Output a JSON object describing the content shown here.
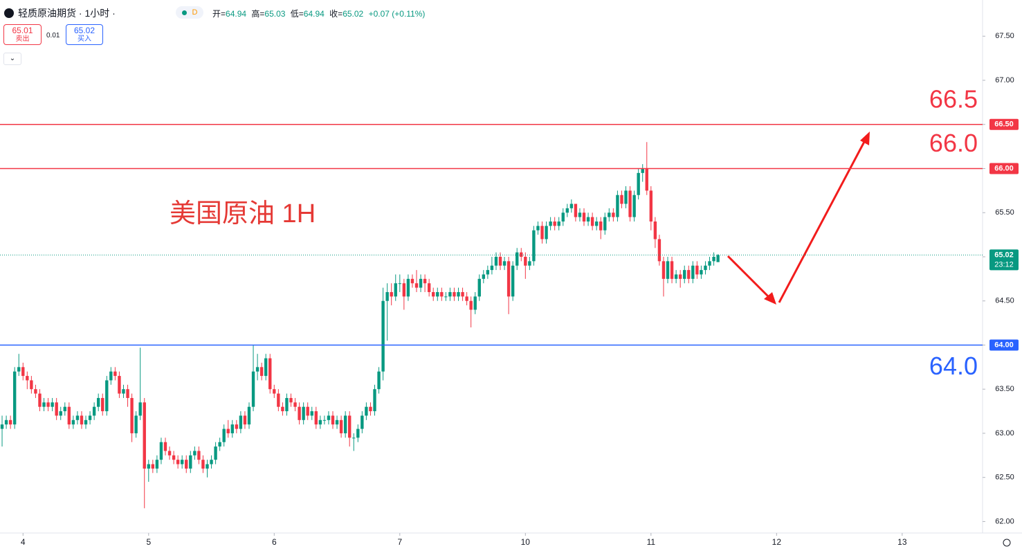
{
  "header": {
    "title": "轻质原油期货 · 1小时 ·",
    "badge": "D",
    "ohlc": [
      {
        "label": "开=",
        "value": "64.94"
      },
      {
        "label": "高=",
        "value": "65.03"
      },
      {
        "label": "低=",
        "value": "64.94"
      },
      {
        "label": "收=",
        "value": "65.02"
      }
    ],
    "change": "+0.07 (+0.11%)"
  },
  "trade": {
    "sell_price": "65.01",
    "sell_label": "卖出",
    "spread": "0.01",
    "buy_price": "65.02",
    "buy_label": "买入"
  },
  "chart_data": {
    "type": "candlestick",
    "annotation": "美国原油 1H",
    "up_color": "#089981",
    "down_color": "#f23645",
    "open": [
      63.05,
      63.1,
      63.15,
      63.1,
      63.7,
      63.75,
      63.65,
      63.6,
      63.5,
      63.45,
      63.3,
      63.35,
      63.3,
      63.35,
      63.2,
      63.25,
      63.3,
      63.1,
      63.15,
      63.2,
      63.1,
      63.15,
      63.2,
      63.3,
      63.4,
      63.25,
      63.6,
      63.7,
      63.65,
      63.45,
      63.5,
      63.4,
      63.0,
      63.2,
      63.35,
      62.6,
      62.65,
      62.6,
      62.7,
      62.9,
      62.8,
      62.75,
      62.7,
      62.65,
      62.7,
      62.6,
      62.75,
      62.8,
      62.7,
      62.6,
      62.65,
      62.7,
      62.85,
      62.9,
      63.05,
      63.0,
      63.1,
      63.05,
      63.2,
      63.1,
      63.3,
      63.7,
      63.75,
      63.65,
      63.85,
      63.5,
      63.45,
      63.3,
      63.25,
      63.4,
      63.35,
      63.3,
      63.15,
      63.3,
      63.2,
      63.25,
      63.1,
      63.15,
      63.15,
      63.2,
      63.1,
      63.15,
      63.0,
      63.2,
      62.95,
      62.95,
      63.05,
      63.2,
      63.3,
      63.25,
      63.5,
      63.7,
      64.5,
      64.6,
      64.55,
      64.7,
      64.7,
      64.55,
      64.75,
      64.7,
      64.65,
      64.75,
      64.7,
      64.6,
      64.55,
      64.6,
      64.55,
      64.55,
      64.6,
      64.55,
      64.6,
      64.55,
      64.5,
      64.4,
      64.55,
      64.75,
      64.8,
      64.85,
      64.9,
      65.0,
      64.9,
      64.95,
      64.55,
      64.9,
      65.05,
      65.0,
      64.9,
      64.95,
      65.3,
      65.35,
      65.2,
      65.35,
      65.4,
      65.35,
      65.4,
      65.5,
      65.55,
      65.6,
      65.45,
      65.5,
      65.4,
      65.45,
      65.35,
      65.4,
      65.3,
      65.45,
      65.5,
      65.45,
      65.7,
      65.6,
      65.75,
      65.45,
      65.7,
      65.95,
      66.0,
      65.75,
      65.4,
      65.2,
      64.95,
      64.75,
      64.95,
      64.75,
      64.8,
      64.75,
      64.85,
      64.75,
      64.9,
      64.8,
      64.85,
      64.9,
      64.95,
      64.94
    ],
    "high": [
      63.2,
      63.2,
      63.2,
      63.75,
      63.9,
      63.8,
      63.7,
      63.65,
      63.55,
      63.5,
      63.4,
      63.4,
      63.4,
      63.4,
      63.3,
      63.35,
      63.35,
      63.2,
      63.25,
      63.25,
      63.2,
      63.25,
      63.35,
      63.45,
      63.45,
      63.65,
      63.75,
      63.75,
      63.7,
      63.55,
      63.55,
      63.45,
      63.25,
      63.97,
      63.4,
      62.7,
      62.7,
      62.75,
      62.95,
      62.95,
      62.85,
      62.8,
      62.75,
      62.75,
      62.75,
      62.8,
      62.85,
      62.85,
      62.75,
      62.7,
      62.75,
      62.9,
      62.95,
      63.1,
      63.15,
      63.15,
      63.15,
      63.25,
      63.25,
      63.35,
      64.0,
      63.9,
      63.8,
      63.9,
      63.9,
      63.55,
      63.5,
      63.35,
      63.45,
      63.45,
      63.4,
      63.35,
      63.35,
      63.35,
      63.3,
      63.3,
      63.2,
      63.2,
      63.25,
      63.25,
      63.2,
      63.2,
      63.25,
      63.25,
      63.0,
      63.1,
      63.25,
      63.35,
      63.35,
      63.55,
      63.75,
      64.65,
      64.7,
      64.7,
      64.8,
      64.8,
      64.75,
      64.8,
      64.8,
      64.85,
      64.8,
      64.8,
      64.75,
      64.65,
      64.65,
      64.65,
      64.6,
      64.65,
      64.65,
      64.65,
      64.65,
      64.6,
      64.55,
      64.6,
      64.8,
      64.85,
      64.9,
      65.0,
      65.05,
      65.05,
      65.0,
      65.0,
      64.95,
      65.1,
      65.1,
      65.05,
      65.0,
      65.35,
      65.4,
      65.4,
      65.4,
      65.45,
      65.45,
      65.45,
      65.55,
      65.6,
      65.65,
      65.6,
      65.55,
      65.55,
      65.5,
      65.5,
      65.45,
      65.45,
      65.5,
      65.55,
      65.55,
      65.75,
      65.75,
      65.8,
      65.8,
      65.75,
      66.0,
      66.05,
      66.3,
      65.8,
      65.45,
      65.25,
      65.0,
      65.0,
      65.0,
      64.85,
      64.85,
      64.9,
      64.9,
      64.95,
      64.95,
      64.9,
      64.95,
      65.0,
      65.05,
      65.03
    ],
    "low": [
      62.85,
      63.05,
      63.05,
      63.05,
      63.65,
      63.6,
      63.5,
      63.45,
      63.4,
      63.25,
      63.25,
      63.25,
      63.25,
      63.15,
      63.15,
      63.2,
      63.05,
      63.05,
      63.1,
      63.05,
      63.05,
      63.1,
      63.15,
      63.25,
      63.2,
      63.2,
      63.55,
      63.6,
      63.4,
      63.4,
      63.3,
      62.9,
      62.95,
      63.15,
      62.15,
      62.45,
      62.55,
      62.55,
      62.65,
      62.75,
      62.7,
      62.65,
      62.6,
      62.6,
      62.55,
      62.55,
      62.7,
      62.65,
      62.55,
      62.5,
      62.6,
      62.65,
      62.8,
      62.85,
      62.95,
      62.95,
      63.0,
      63.0,
      63.05,
      63.05,
      63.25,
      63.6,
      63.6,
      63.6,
      63.45,
      63.4,
      63.25,
      63.2,
      63.2,
      63.3,
      63.25,
      63.1,
      63.1,
      63.15,
      63.15,
      63.05,
      63.05,
      63.1,
      63.1,
      63.05,
      63.05,
      62.95,
      62.95,
      62.85,
      62.8,
      62.9,
      63.0,
      63.15,
      63.2,
      63.2,
      63.45,
      63.6,
      64.05,
      64.45,
      64.5,
      64.6,
      64.4,
      64.5,
      64.65,
      64.6,
      64.6,
      64.6,
      64.55,
      64.5,
      64.5,
      64.5,
      64.5,
      64.5,
      64.5,
      64.5,
      64.5,
      64.45,
      64.2,
      64.35,
      64.5,
      64.7,
      64.75,
      64.8,
      64.85,
      64.85,
      64.85,
      64.35,
      64.5,
      64.85,
      64.95,
      64.75,
      64.85,
      64.9,
      65.25,
      65.15,
      65.15,
      65.3,
      65.3,
      65.3,
      65.35,
      65.45,
      65.5,
      65.4,
      65.4,
      65.35,
      65.35,
      65.3,
      65.3,
      65.2,
      65.25,
      65.4,
      65.4,
      65.4,
      65.55,
      65.55,
      65.4,
      65.4,
      65.65,
      65.85,
      65.7,
      65.3,
      65.1,
      64.9,
      64.55,
      64.7,
      64.7,
      64.7,
      64.65,
      64.7,
      64.7,
      64.7,
      64.75,
      64.75,
      64.8,
      64.85,
      64.9,
      64.94
    ],
    "close": [
      63.1,
      63.15,
      63.1,
      63.7,
      63.75,
      63.65,
      63.6,
      63.5,
      63.45,
      63.3,
      63.35,
      63.3,
      63.35,
      63.2,
      63.25,
      63.3,
      63.1,
      63.15,
      63.2,
      63.1,
      63.15,
      63.2,
      63.3,
      63.4,
      63.25,
      63.6,
      63.7,
      63.65,
      63.45,
      63.5,
      63.4,
      63.0,
      63.2,
      63.35,
      62.6,
      62.65,
      62.6,
      62.7,
      62.9,
      62.8,
      62.75,
      62.7,
      62.65,
      62.7,
      62.6,
      62.75,
      62.8,
      62.7,
      62.6,
      62.65,
      62.7,
      62.85,
      62.9,
      63.05,
      63.0,
      63.1,
      63.05,
      63.2,
      63.1,
      63.3,
      63.7,
      63.75,
      63.65,
      63.85,
      63.5,
      63.45,
      63.3,
      63.25,
      63.4,
      63.35,
      63.3,
      63.15,
      63.3,
      63.2,
      63.25,
      63.1,
      63.15,
      63.15,
      63.2,
      63.1,
      63.15,
      63.0,
      63.2,
      62.95,
      62.95,
      63.05,
      63.2,
      63.3,
      63.25,
      63.5,
      63.7,
      64.5,
      64.6,
      64.55,
      64.7,
      64.7,
      64.55,
      64.75,
      64.7,
      64.65,
      64.75,
      64.7,
      64.6,
      64.55,
      64.6,
      64.55,
      64.55,
      64.6,
      64.55,
      64.6,
      64.55,
      64.5,
      64.4,
      64.55,
      64.75,
      64.8,
      64.85,
      64.9,
      65.0,
      64.9,
      64.95,
      64.55,
      64.9,
      65.05,
      65.0,
      64.9,
      64.95,
      65.3,
      65.35,
      65.2,
      65.35,
      65.4,
      65.35,
      65.4,
      65.5,
      65.55,
      65.6,
      65.45,
      65.5,
      65.4,
      65.45,
      65.35,
      65.4,
      65.3,
      65.45,
      65.5,
      65.45,
      65.7,
      65.6,
      65.75,
      65.45,
      65.7,
      65.95,
      66.0,
      65.75,
      65.4,
      65.2,
      64.95,
      64.75,
      64.95,
      64.75,
      64.8,
      64.75,
      64.85,
      64.75,
      64.9,
      64.8,
      64.85,
      64.9,
      64.95,
      65.0,
      65.02
    ],
    "xlim": [
      -0.5,
      234.2
    ],
    "xticks": [
      {
        "value": 5,
        "label": "4"
      },
      {
        "value": 35,
        "label": "5"
      },
      {
        "value": 65,
        "label": "6"
      },
      {
        "value": 95,
        "label": "7"
      },
      {
        "value": 125,
        "label": "10"
      },
      {
        "value": 155,
        "label": "11"
      },
      {
        "value": 185,
        "label": "12"
      },
      {
        "value": 215,
        "label": "13"
      }
    ],
    "ylim": [
      61.87,
      67.91
    ],
    "yticks": [
      {
        "value": 62,
        "label": "62.00"
      },
      {
        "value": 62.5,
        "label": "62.50"
      },
      {
        "value": 63,
        "label": "63.00"
      },
      {
        "value": 63.5,
        "label": "63.50"
      },
      {
        "value": 64,
        "label": "64.00"
      },
      {
        "value": 64.5,
        "label": "64.50"
      },
      {
        "value": 65,
        "label": "65.00"
      },
      {
        "value": 65.5,
        "label": "65.50"
      },
      {
        "value": 66,
        "label": "66.00"
      },
      {
        "value": 66.5,
        "label": "66.50"
      },
      {
        "value": 67,
        "label": "67.00"
      },
      {
        "value": 67.5,
        "label": "67.50"
      }
    ],
    "levels": [
      {
        "value": 66.5,
        "label": "66.50",
        "text": "66.5",
        "color": "#f23645"
      },
      {
        "value": 66,
        "label": "66.00",
        "text": "66.0",
        "color": "#f23645"
      },
      {
        "value": 64,
        "label": "64.00",
        "text": "64.0",
        "color": "#2962ff"
      }
    ],
    "last": {
      "value": 65.02,
      "countdown": "23:12",
      "color": "#089981"
    }
  }
}
